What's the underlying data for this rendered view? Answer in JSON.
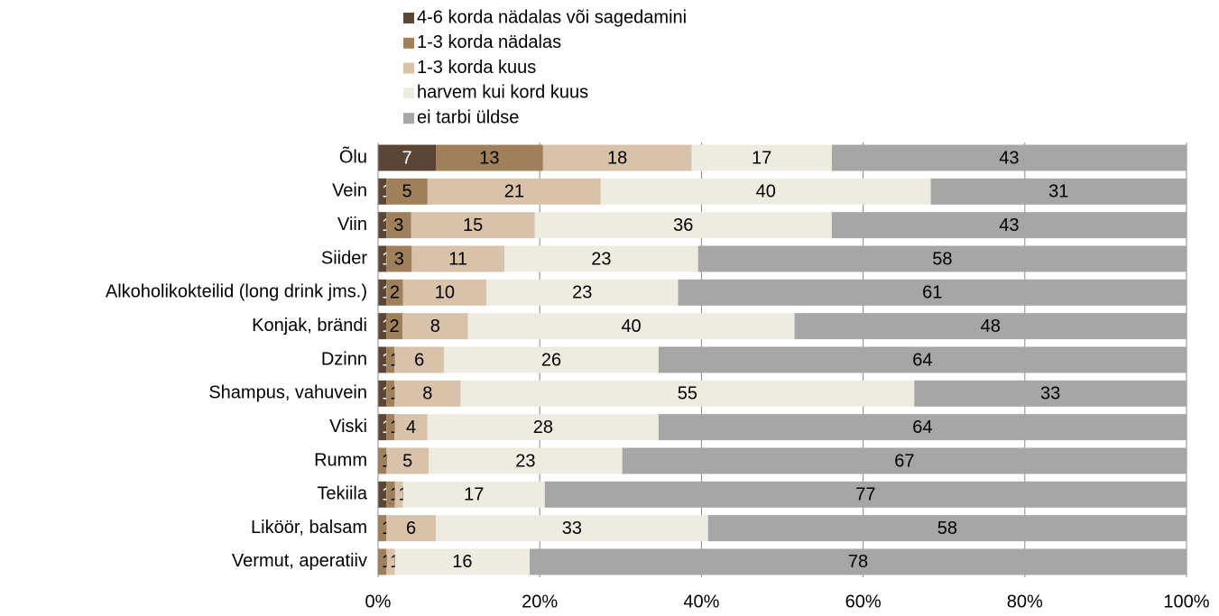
{
  "chart_data": {
    "type": "stacked_percent_bar",
    "categories": [
      "Õlu",
      "Vein",
      "Viin",
      "Siider",
      "Alkoholikokteilid (long drink jms.)",
      "Konjak, brändi",
      "Dzinn",
      "Shampus, vahuvein",
      "Viski",
      "Rumm",
      "Tekiila",
      "Liköör, balsam",
      "Vermut, aperatiiv"
    ],
    "series": [
      {
        "name": "4-6 korda nädalas või sagedamini",
        "color": "#5b4636",
        "values": [
          7,
          1,
          1,
          1,
          1,
          1,
          1,
          1,
          1,
          0,
          1,
          null,
          0
        ]
      },
      {
        "name": "1-3 korda nädalas",
        "color": "#a0805a",
        "values": [
          13,
          5,
          3,
          3,
          2,
          2,
          1,
          1,
          1,
          1,
          1,
          1,
          1
        ]
      },
      {
        "name": "1-3 korda kuus",
        "color": "#d8c3aa",
        "values": [
          18,
          21,
          15,
          11,
          10,
          8,
          6,
          8,
          4,
          5,
          1,
          6,
          1
        ]
      },
      {
        "name": "harvem kui kord kuus",
        "color": "#eeebe0",
        "values": [
          17,
          40,
          36,
          23,
          23,
          40,
          26,
          55,
          28,
          23,
          17,
          33,
          16
        ]
      },
      {
        "name": "ei tarbi üldse",
        "color": "#a6a6a6",
        "values": [
          43,
          31,
          43,
          58,
          61,
          48,
          64,
          33,
          64,
          67,
          77,
          58,
          78
        ]
      }
    ],
    "xlim": [
      0,
      100
    ],
    "xticks": [
      {
        "value": 0,
        "label": "0%"
      },
      {
        "value": 20,
        "label": "20%"
      },
      {
        "value": 40,
        "label": "40%"
      },
      {
        "value": 60,
        "label": "60%"
      },
      {
        "value": 80,
        "label": "80%"
      },
      {
        "value": 100,
        "label": "100%"
      }
    ],
    "grid": true
  }
}
